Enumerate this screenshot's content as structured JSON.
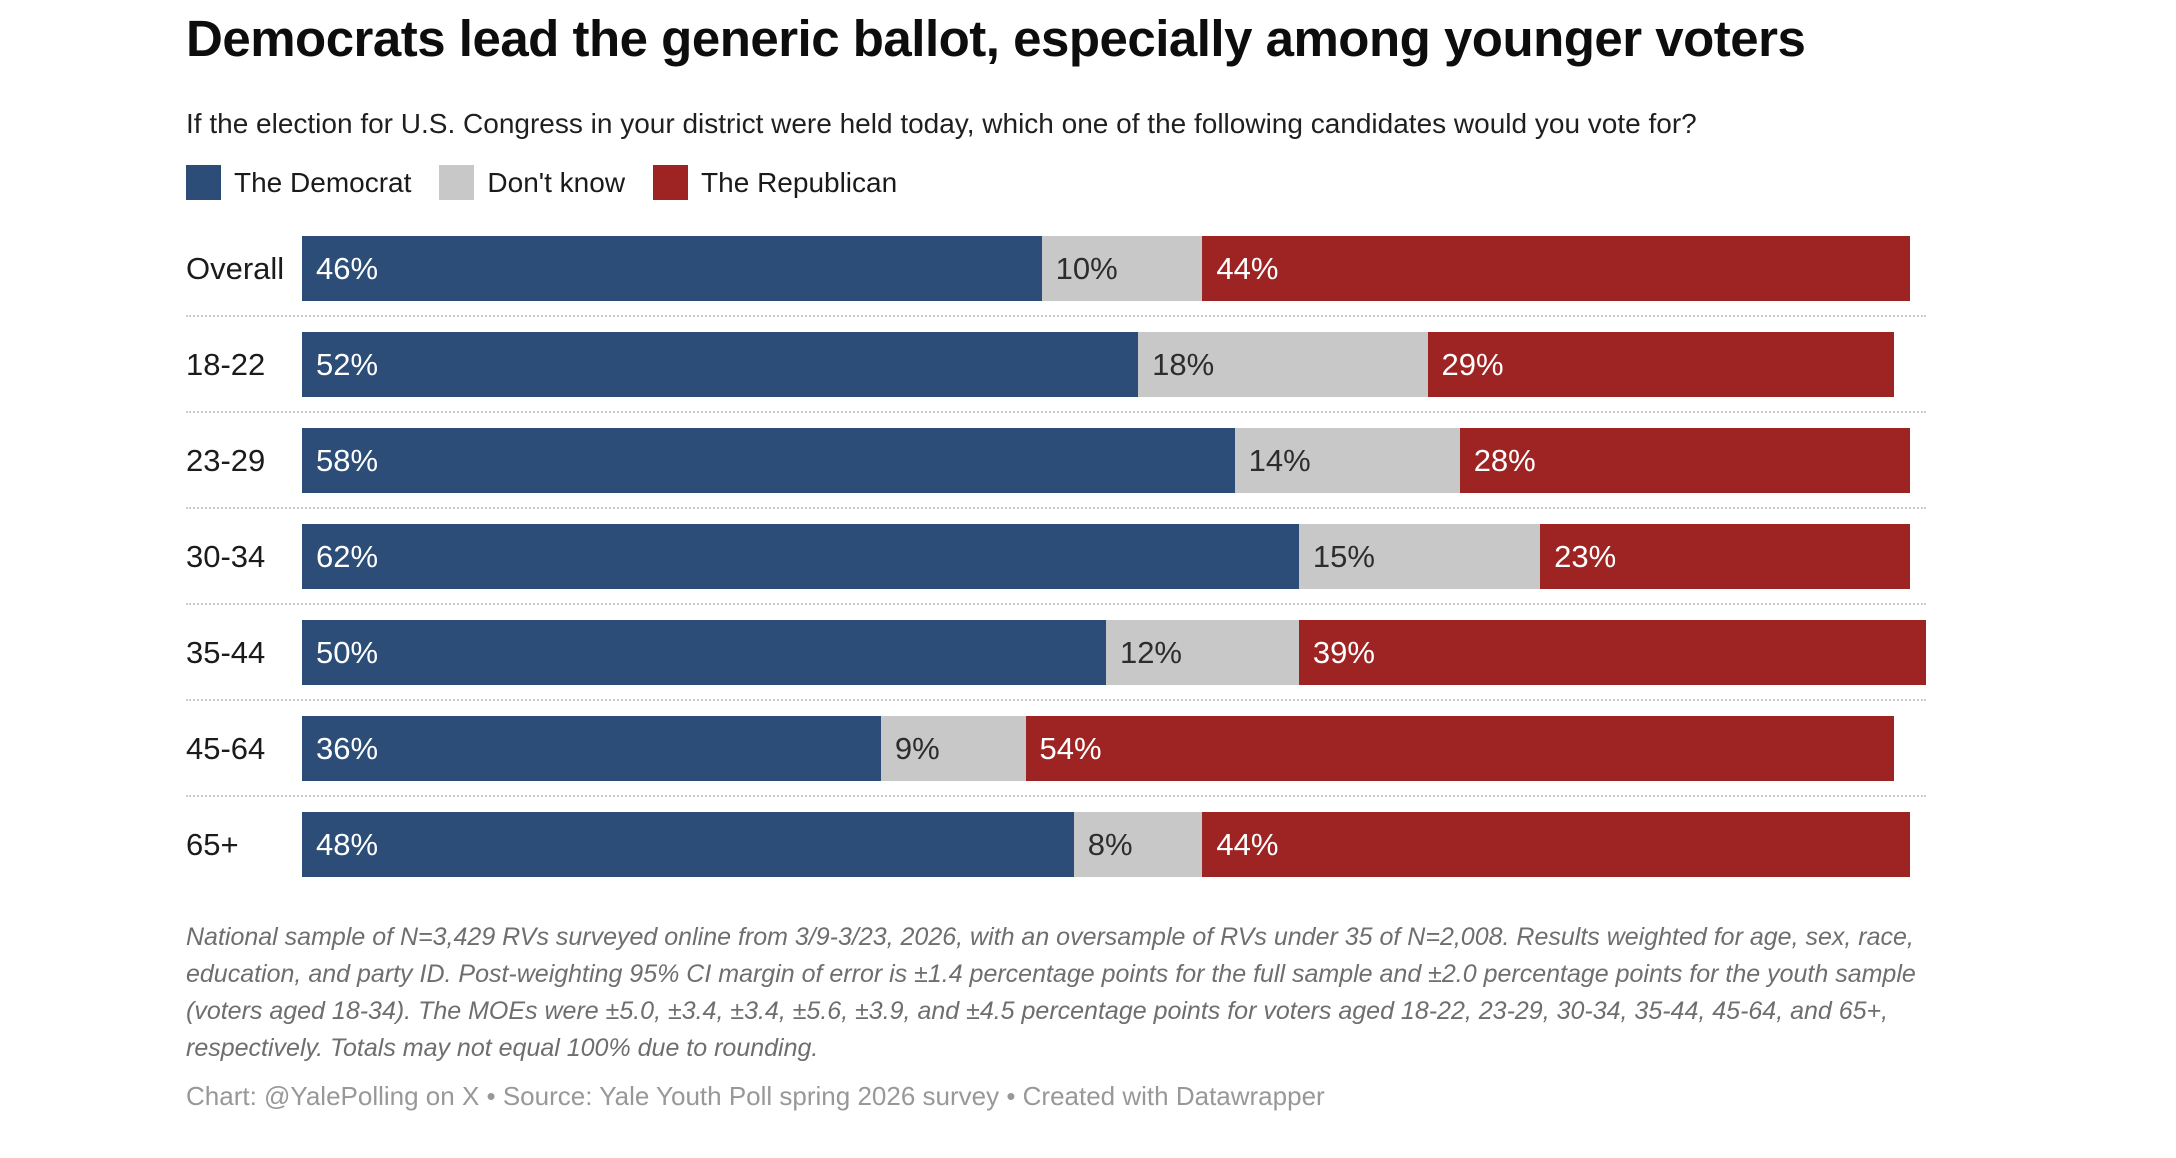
{
  "header": {
    "title": "Democrats lead the generic ballot, especially among younger voters",
    "subtitle": "If the election for U.S. Congress in your district were held today, which one of the following candidates would you vote for?"
  },
  "legend": {
    "items": [
      {
        "key": "democrat",
        "label": "The Democrat",
        "color": "#2b4d77"
      },
      {
        "key": "dont-know",
        "label": "Don't know",
        "color": "#c8c8c8"
      },
      {
        "key": "republican",
        "label": "The Republican",
        "color": "#9d2423"
      }
    ]
  },
  "chart_data": {
    "type": "bar",
    "stacked": true,
    "orientation": "horizontal",
    "title": "Democrats lead the generic ballot, especially among younger voters",
    "categories": [
      "Overall",
      "18-22",
      "23-29",
      "30-34",
      "35-44",
      "45-64",
      "65+"
    ],
    "series": [
      {
        "key": "democrat",
        "name": "The Democrat",
        "color": "#2b4d77",
        "label_color": "#ffffff",
        "values": [
          46,
          52,
          58,
          62,
          50,
          36,
          48
        ]
      },
      {
        "key": "dont-know",
        "name": "Don't know",
        "color": "#c8c8c8",
        "label_color": "#2d2d2d",
        "values": [
          10,
          18,
          14,
          15,
          12,
          9,
          8
        ]
      },
      {
        "key": "republican",
        "name": "The Republican",
        "color": "#9d2423",
        "label_color": "#ffffff",
        "values": [
          44,
          29,
          28,
          23,
          39,
          54,
          44
        ]
      }
    ],
    "value_suffix": "%",
    "xlim": [
      0,
      101
    ],
    "grid": false,
    "legend_position": "top",
    "separator_color": "#cbcbcb"
  },
  "notes": {
    "footnote": "National sample of N=3,429 RVs surveyed online from 3/9-3/23, 2026, with an oversample of RVs under 35 of N=2,008. Results weighted for age, sex, race, education, and party ID. Post-weighting 95% CI margin of error is ±1.4 percentage points for the full sample and ±2.0 percentage points for the youth sample (voters aged 18-34). The MOEs were ±5.0, ±3.4, ±3.4, ±5.6, ±3.9, and ±4.5 percentage points for voters aged 18-22, 23-29, 30-34, 35-44, 45-64, and 65+, respectively. Totals may not equal 100% due to rounding.",
    "credit": "Chart: @YalePolling on X • Source: Yale Youth Poll spring 2026 survey • Created with Datawrapper"
  }
}
